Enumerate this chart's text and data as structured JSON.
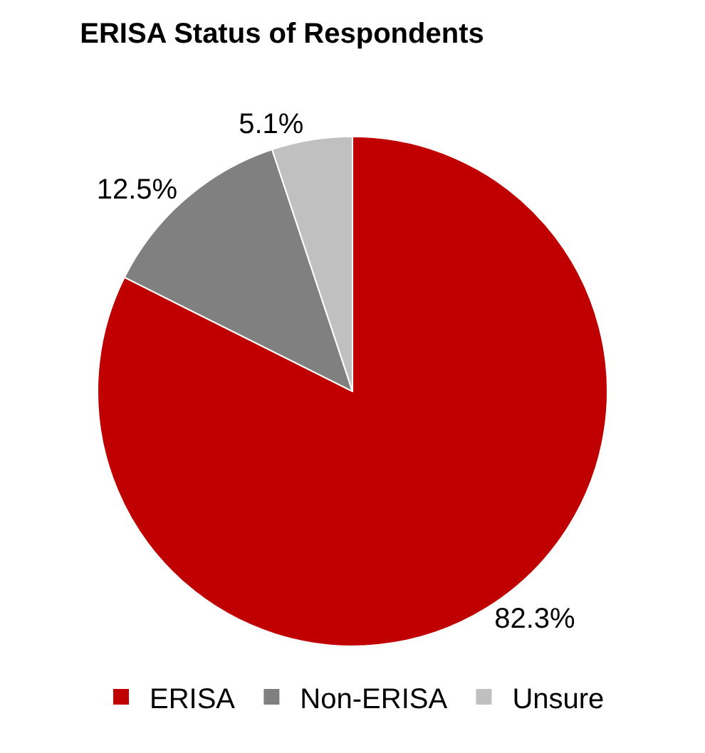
{
  "chart_data": {
    "type": "pie",
    "title": "ERISA Status of Respondents",
    "categories": [
      "ERISA",
      "Non-ERISA",
      "Unsure"
    ],
    "values": [
      82.3,
      12.5,
      5.1
    ],
    "colors": [
      "#c00000",
      "#808080",
      "#c0c0c0"
    ],
    "value_labels": [
      "82.3%",
      "12.5%",
      "5.1%"
    ],
    "legend": "bottom"
  }
}
